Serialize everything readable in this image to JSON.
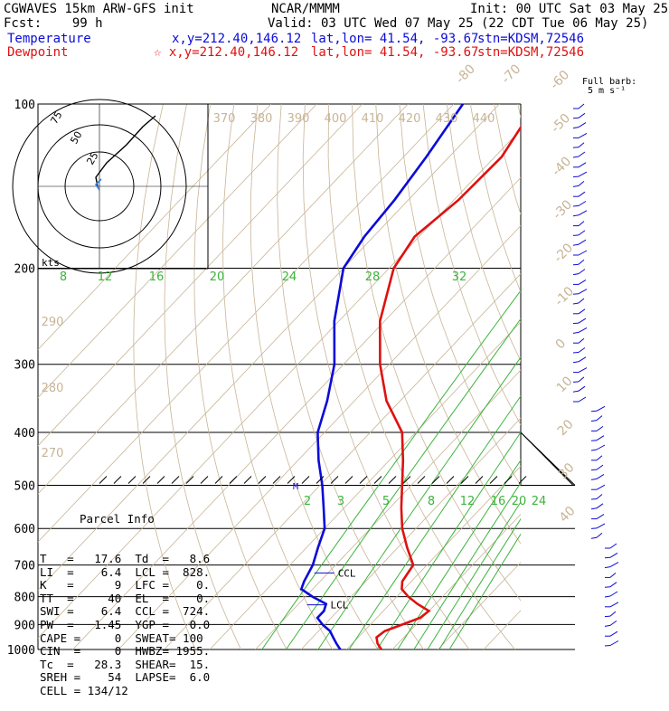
{
  "header": {
    "title_line": "CGWAVES 15km ARW-GFS init",
    "org": "NCAR/MMMM",
    "init": "Init: 00 UTC Sat 03 May 25",
    "fcst": "Fcst:    99 h",
    "valid": "Valid: 03 UTC Wed 07 May 25 (22 CDT Tue 06 May 25)",
    "temp_label": "Temperature",
    "temp_xy": "x,y=212.40,146.12",
    "temp_latlon": "lat,lon= 41.54, -93.67",
    "temp_stn": "stn=KDSM,72546",
    "dew_label": "Dewpoint",
    "dew_xy": "☆ x,y=212.40,146.12",
    "dew_latlon": "lat,lon= 41.54, -93.67",
    "dew_stn": "stn=KDSM,72546",
    "barb_key_1": "Full barb:",
    "barb_key_2": "5 m s⁻¹"
  },
  "colors": {
    "temperature": "#e01010",
    "dewpoint": "#0b0bd8",
    "mixing_ratio": "#3cb43c",
    "dry_adiabat": "#c8b496",
    "isobar": "#000000"
  },
  "parcel_info": {
    "title": "Parcel Info",
    "rows": [
      "T   =   17.6  Td  =   8.6",
      "LI  =    6.4  LCL =  828.",
      "K   =      9  LFC =    0.",
      "TT  =     40  EL  =    0.",
      "SWI =    6.4  CCL =  724.",
      "PW  =   1.45  YGP =   0.0",
      "CAPE =     0  SWEAT= 100",
      "CIN  =     0  HWBZ= 1955.",
      "Tc  =   28.3  SHEAR=  15.",
      "SREH =    54  LAPSE=  6.0",
      "CELL = 134/12"
    ]
  },
  "markers": {
    "ccl": "CCL",
    "lcl": "LCL",
    "m": "M"
  },
  "hodograph": {
    "rings": [
      "25",
      "50",
      "75"
    ],
    "unit": "kts"
  },
  "chart_data": {
    "type": "line",
    "title": "CGWAVES 15km ARW-GFS init",
    "xlabel": "",
    "ylabel": "",
    "pressure_ticks": [
      100,
      200,
      300,
      400,
      500,
      600,
      700,
      800,
      900,
      1000
    ],
    "pressure_tick_labels": [
      "100",
      "200",
      "300",
      "400",
      "500",
      "600",
      "700",
      "800",
      "900",
      "1000"
    ],
    "isotherm_labels": [
      "-80",
      "-70",
      "-60",
      "-50",
      "-40",
      "-30",
      "-20",
      "-10",
      "0",
      "10",
      "20",
      "30",
      "40"
    ],
    "isotherm_values": [
      -80,
      -70,
      -60,
      -50,
      -40,
      -30,
      -20,
      -10,
      0,
      10,
      20,
      30,
      40
    ],
    "theta_labels": [
      "370",
      "380",
      "390",
      "400",
      "410",
      "420",
      "430",
      "440",
      "290",
      "280",
      "270"
    ],
    "mixing_ratio_labels": [
      "8",
      "12",
      "16",
      "20",
      "24",
      "28",
      "32",
      "2",
      "3",
      "5",
      "8",
      "12",
      "16",
      "20",
      "24"
    ],
    "series": [
      {
        "name": "Temperature",
        "points": [
          [
            1000,
            17.6
          ],
          [
            975,
            15.5
          ],
          [
            950,
            14.0
          ],
          [
            925,
            14.5
          ],
          [
            900,
            17.0
          ],
          [
            875,
            19.5
          ],
          [
            850,
            20.0
          ],
          [
            825,
            16.0
          ],
          [
            800,
            12.5
          ],
          [
            775,
            9.5
          ],
          [
            750,
            8.0
          ],
          [
            700,
            7.0
          ],
          [
            650,
            2.0
          ],
          [
            600,
            -3.0
          ],
          [
            550,
            -7.5
          ],
          [
            500,
            -12.0
          ],
          [
            450,
            -17.0
          ],
          [
            400,
            -23.0
          ],
          [
            350,
            -33.0
          ],
          [
            300,
            -42.0
          ],
          [
            250,
            -51.0
          ],
          [
            200,
            -59.0
          ],
          [
            175,
            -61.0
          ],
          [
            150,
            -59.0
          ],
          [
            125,
            -58.5
          ],
          [
            100,
            -62.0
          ]
        ]
      },
      {
        "name": "Dewpoint",
        "points": [
          [
            1000,
            8.6
          ],
          [
            975,
            6.5
          ],
          [
            950,
            4.5
          ],
          [
            925,
            2.5
          ],
          [
            900,
            -0.5
          ],
          [
            875,
            -3.0
          ],
          [
            850,
            -3.0
          ],
          [
            825,
            -4.0
          ],
          [
            800,
            -8.5
          ],
          [
            775,
            -12.5
          ],
          [
            750,
            -13.5
          ],
          [
            700,
            -15.0
          ],
          [
            650,
            -17.5
          ],
          [
            600,
            -20.0
          ],
          [
            550,
            -24.5
          ],
          [
            500,
            -29.5
          ],
          [
            450,
            -35.5
          ],
          [
            400,
            -41.5
          ],
          [
            350,
            -46.0
          ],
          [
            300,
            -52.0
          ],
          [
            250,
            -61.0
          ],
          [
            200,
            -70.0
          ],
          [
            175,
            -72.0
          ],
          [
            150,
            -73.0
          ],
          [
            125,
            -75.0
          ],
          [
            100,
            -78.0
          ]
        ]
      }
    ],
    "xlim": [
      -40,
      45
    ],
    "ylim": [
      1000,
      100
    ],
    "log_pressure": true
  }
}
